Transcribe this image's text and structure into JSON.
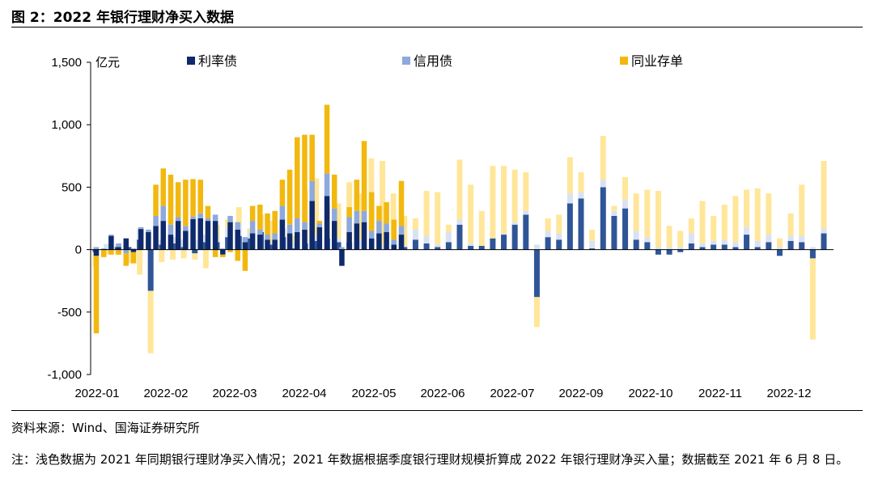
{
  "figure": {
    "title": "图 2：2022 年银行理财净买入数据",
    "source": "资料来源：Wind、国海证券研究所",
    "note": "注：浅色数据为 2021 年同期银行理财净买入情况；2021 年数据根据季度银行理财规模折算成 2022 年银行理财净买入量；数据截至 2021 年 6 月 8 日。"
  },
  "chart_data": {
    "type": "bar",
    "stacked": true,
    "ylabel": "亿元",
    "ylim": [
      -1000,
      1500
    ],
    "yticks": [
      -1000,
      -500,
      0,
      500,
      1000,
      1500
    ],
    "ytick_labels": [
      "-1,000",
      "-500",
      "0",
      "500",
      "1,000",
      "1,500"
    ],
    "x_tick_labels": [
      "2022-01",
      "2022-02",
      "2022-03",
      "2022-04",
      "2022-05",
      "2022-06",
      "2022-07",
      "2022-09",
      "2022-10",
      "2022-11",
      "2022-12"
    ],
    "grid": false,
    "legend_position": "top",
    "colors": {
      "利率债": "#0f2a6b",
      "信用债": "#8ea9db",
      "同业存单": "#f2b80f",
      "利率债_light": "#2f5597",
      "信用债_light": "#d9e2f3",
      "同业存单_light": "#ffe699"
    },
    "series": [
      {
        "name": "利率债"
      },
      {
        "name": "信用债"
      },
      {
        "name": "同业存单"
      }
    ],
    "series_2022": {
      "利率债": [
        -50,
        5,
        110,
        20,
        90,
        -20,
        165,
        140,
        190,
        230,
        120,
        230,
        150,
        245,
        250,
        230,
        230,
        -40,
        220,
        160,
        60,
        130,
        120,
        80,
        80,
        240,
        130,
        140,
        160,
        390,
        180,
        430,
        230,
        -130,
        140,
        210,
        220,
        90,
        130,
        140,
        40,
        120
      ],
      "信用债": [
        20,
        5,
        10,
        30,
        -30,
        10,
        15,
        20,
        80,
        120,
        80,
        30,
        40,
        20,
        40,
        20,
        50,
        10,
        50,
        60,
        40,
        100,
        40,
        40,
        50,
        110,
        70,
        110,
        60,
        160,
        30,
        180,
        100,
        20,
        120,
        100,
        90,
        60,
        100,
        70,
        40,
        70
      ],
      "同业存单": [
        -620,
        -60,
        -40,
        -40,
        -100,
        -90,
        0,
        0,
        250,
        300,
        400,
        280,
        370,
        300,
        270,
        100,
        -60,
        -20,
        -20,
        -90,
        -170,
        120,
        200,
        170,
        180,
        210,
        440,
        650,
        700,
        370,
        20,
        550,
        270,
        0,
        80,
        250,
        560,
        310,
        120,
        170,
        160,
        360
      ]
    },
    "series_2021": {
      "利率债": [
        -20,
        5,
        20,
        20,
        80,
        -330,
        40,
        50,
        20,
        -30,
        60,
        60,
        100,
        110,
        90,
        140,
        40,
        100,
        10,
        50,
        70,
        90,
        60,
        60,
        0,
        0,
        0,
        0,
        20,
        80,
        50,
        20,
        60,
        200,
        30,
        30,
        90,
        120,
        200,
        280,
        -380,
        100,
        80,
        370,
        410,
        10,
        500,
        270,
        330,
        80,
        60,
        -40,
        -40,
        -20,
        50,
        20,
        40,
        40,
        20,
        120,
        20,
        60,
        -50,
        70,
        60,
        -70,
        130
      ],
      "信用债": [
        20,
        40,
        20,
        5,
        90,
        10,
        40,
        50,
        60,
        80,
        60,
        40,
        80,
        100,
        50,
        60,
        20,
        70,
        50,
        40,
        40,
        40,
        30,
        10,
        80,
        120,
        40,
        90,
        10,
        80,
        60,
        20,
        80,
        40,
        20,
        0,
        0,
        10,
        20,
        30,
        40,
        50,
        50,
        80,
        50,
        60,
        60,
        40,
        70,
        70,
        40,
        20,
        20,
        20,
        80,
        30,
        30,
        40,
        40,
        60,
        50,
        60,
        20,
        40,
        50,
        20,
        40
      ],
      "同业存单": [
        -120,
        -40,
        -40,
        -110,
        -200,
        -500,
        -100,
        -80,
        -70,
        -50,
        -150,
        100,
        60,
        130,
        30,
        80,
        170,
        0,
        50,
        380,
        460,
        230,
        280,
        470,
        370,
        610,
        670,
        360,
        240,
        90,
        360,
        420,
        60,
        480,
        470,
        280,
        580,
        540,
        420,
        310,
        -240,
        100,
        150,
        290,
        160,
        90,
        350,
        40,
        180,
        300,
        380,
        450,
        170,
        130,
        120,
        340,
        200,
        280,
        370,
        300,
        420,
        330,
        70,
        180,
        410,
        -650,
        540
      ]
    },
    "x_positions_note": "",
    "weekly_2022_count": 42,
    "weekly_2021_count": 67
  }
}
